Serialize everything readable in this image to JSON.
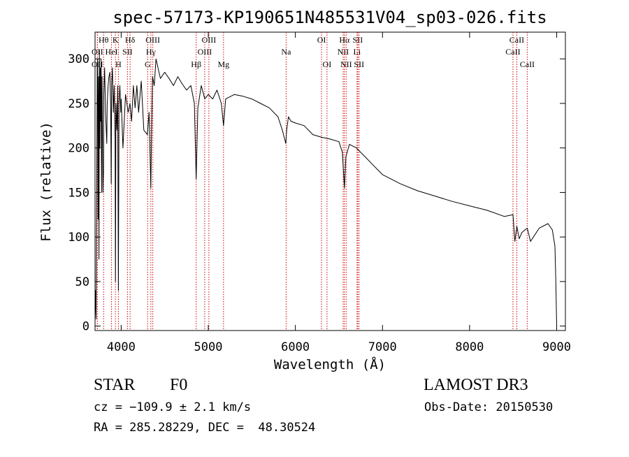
{
  "chart_data": {
    "type": "line",
    "title": "spec-57173-KP190651N485531V04_sp03-026.fits",
    "xlabel": "Wavelength (Å)",
    "ylabel": "Flux (relative)",
    "xlim": [
      3700,
      9100
    ],
    "ylim": [
      -5,
      330
    ],
    "xticks": [
      4000,
      5000,
      6000,
      7000,
      8000,
      9000
    ],
    "yticks": [
      0,
      50,
      100,
      150,
      200,
      250,
      300
    ],
    "grid": false,
    "series": [
      {
        "name": "spectrum",
        "x": [
          3700,
          3705,
          3712,
          3720,
          3725,
          3730,
          3735,
          3740,
          3745,
          3750,
          3755,
          3760,
          3765,
          3770,
          3775,
          3780,
          3790,
          3797,
          3800,
          3810,
          3820,
          3835,
          3840,
          3850,
          3860,
          3870,
          3880,
          3885,
          3890,
          3900,
          3910,
          3920,
          3930,
          3934,
          3940,
          3950,
          3960,
          3968,
          3975,
          3985,
          3995,
          4000,
          4020,
          4050,
          4080,
          4101,
          4120,
          4140,
          4160,
          4180,
          4200,
          4230,
          4260,
          4300,
          4320,
          4340,
          4350,
          4360,
          4380,
          4400,
          4450,
          4500,
          4550,
          4600,
          4650,
          4700,
          4750,
          4800,
          4840,
          4861,
          4880,
          4920,
          4960,
          5000,
          5050,
          5100,
          5150,
          5175,
          5200,
          5300,
          5400,
          5500,
          5600,
          5700,
          5800,
          5850,
          5890,
          5900,
          5920,
          5950,
          6000,
          6100,
          6200,
          6300,
          6400,
          6500,
          6540,
          6563,
          6580,
          6620,
          6700,
          6800,
          6900,
          7000,
          7200,
          7400,
          7600,
          7800,
          8000,
          8200,
          8400,
          8498,
          8520,
          8542,
          8570,
          8600,
          8662,
          8700,
          8800,
          8900,
          8950,
          8980,
          8990,
          9000
        ],
        "y": [
          10,
          40,
          8,
          170,
          290,
          300,
          120,
          280,
          75,
          310,
          200,
          290,
          230,
          300,
          150,
          280,
          150,
          175,
          260,
          290,
          240,
          205,
          250,
          270,
          280,
          285,
          245,
          160,
          270,
          290,
          240,
          270,
          210,
          50,
          250,
          220,
          270,
          40,
          250,
          270,
          240,
          255,
          200,
          260,
          240,
          250,
          230,
          270,
          245,
          270,
          240,
          275,
          220,
          215,
          240,
          155,
          225,
          280,
          270,
          300,
          278,
          285,
          278,
          270,
          280,
          272,
          265,
          270,
          250,
          165,
          245,
          270,
          255,
          260,
          255,
          265,
          250,
          225,
          255,
          260,
          258,
          255,
          250,
          245,
          235,
          220,
          205,
          220,
          235,
          230,
          228,
          225,
          215,
          212,
          210,
          207,
          195,
          155,
          190,
          204,
          200,
          190,
          180,
          170,
          160,
          152,
          146,
          140,
          135,
          130,
          123,
          125,
          95,
          112,
          98,
          105,
          110,
          95,
          110,
          115,
          108,
          90,
          50,
          0
        ]
      }
    ],
    "line_markers": [
      {
        "name": "OII",
        "wavelength": 3727,
        "label_row": 1
      },
      {
        "name": "Hθ",
        "wavelength": 3798,
        "label_row": 0
      },
      {
        "name": "OII",
        "wavelength": 3727,
        "label_row": 2
      },
      {
        "name": "HeI",
        "wavelength": 3889,
        "label_row": 1
      },
      {
        "name": "K",
        "wavelength": 3934,
        "label_row": 0
      },
      {
        "name": "H",
        "wavelength": 3968,
        "label_row": 2
      },
      {
        "name": "SII",
        "wavelength": 4072,
        "label_row": 1
      },
      {
        "name": "Hδ",
        "wavelength": 4102,
        "label_row": 0
      },
      {
        "name": "G",
        "wavelength": 4304,
        "label_row": 2
      },
      {
        "name": "Hγ",
        "wavelength": 4341,
        "label_row": 1
      },
      {
        "name": "OIII",
        "wavelength": 4363,
        "label_row": 0
      },
      {
        "name": "Hβ",
        "wavelength": 4861,
        "label_row": 2
      },
      {
        "name": "OIII",
        "wavelength": 4959,
        "label_row": 1
      },
      {
        "name": "OIII",
        "wavelength": 5007,
        "label_row": 0
      },
      {
        "name": "Mg",
        "wavelength": 5175,
        "label_row": 2
      },
      {
        "name": "Na",
        "wavelength": 5894,
        "label_row": 1
      },
      {
        "name": "OI",
        "wavelength": 6300,
        "label_row": 0
      },
      {
        "name": "OI",
        "wavelength": 6363,
        "label_row": 2
      },
      {
        "name": "NII",
        "wavelength": 6548,
        "label_row": 1
      },
      {
        "name": "Hα",
        "wavelength": 6563,
        "label_row": 0
      },
      {
        "name": "NII",
        "wavelength": 6583,
        "label_row": 2
      },
      {
        "name": "Li",
        "wavelength": 6708,
        "label_row": 1
      },
      {
        "name": "SII",
        "wavelength": 6716,
        "label_row": 0
      },
      {
        "name": "SII",
        "wavelength": 6731,
        "label_row": 2
      },
      {
        "name": "CaII",
        "wavelength": 8498,
        "label_row": 1
      },
      {
        "name": "CaII",
        "wavelength": 8542,
        "label_row": 0
      },
      {
        "name": "CaII",
        "wavelength": 8662,
        "label_row": 2
      }
    ]
  },
  "info": {
    "class": "STAR",
    "subclass": "F0",
    "survey": "LAMOST DR3",
    "redshift": "cz = −109.9 ± 2.1 km/s",
    "obs_date": "Obs-Date: 20150530",
    "coords": "RA = 285.28229, DEC =  48.30524"
  }
}
